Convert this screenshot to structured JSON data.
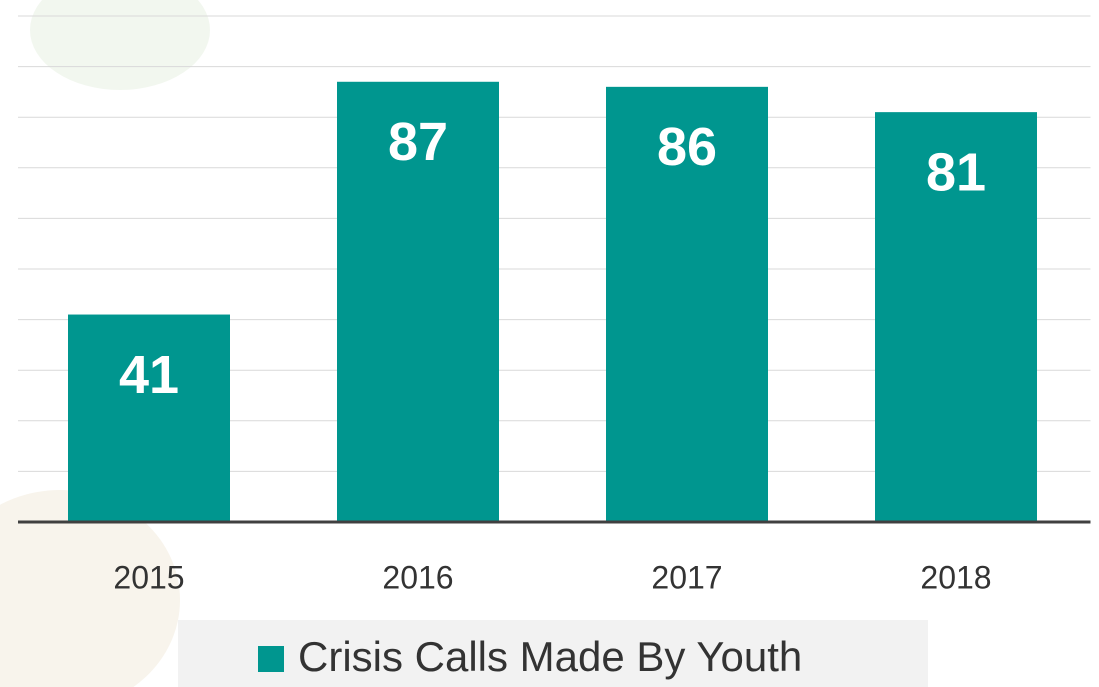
{
  "chart_data": {
    "type": "bar",
    "categories": [
      "2015",
      "2016",
      "2017",
      "2018"
    ],
    "values": [
      41,
      87,
      86,
      81
    ],
    "color": "#00968f",
    "ylim": [
      0,
      100
    ],
    "yticks": [
      0,
      10,
      20,
      30,
      40,
      50,
      60,
      70,
      80,
      90,
      100
    ],
    "grid": true,
    "legend": "bottom",
    "series_name": "Crisis Calls Made By Youth"
  }
}
